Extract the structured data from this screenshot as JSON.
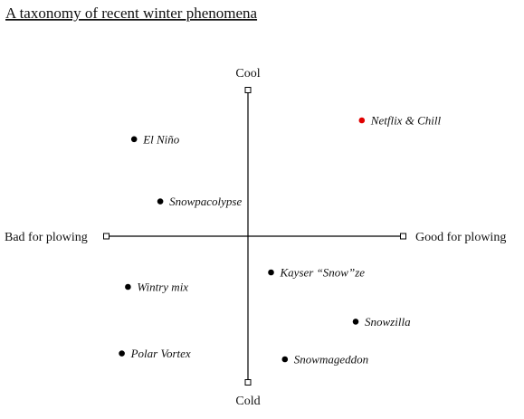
{
  "title": "A taxonomy of recent winter phenomena",
  "axes": {
    "top": "Cool",
    "bottom": "Cold",
    "left": "Bad for plowing",
    "right": "Good for plowing"
  },
  "colors": {
    "default_point": "#000000",
    "highlight_point": "#e00000",
    "axis": "#000000"
  },
  "points": [
    {
      "label": "Netflix & Chill",
      "x": 0.74,
      "y": 0.8,
      "highlight": true
    },
    {
      "label": "El Niño",
      "x": -0.74,
      "y": 0.67,
      "highlight": false
    },
    {
      "label": "Snowpacolypse",
      "x": -0.57,
      "y": 0.24,
      "highlight": false
    },
    {
      "label": "Kayser “Snow”ze",
      "x": 0.15,
      "y": -0.25,
      "highlight": false
    },
    {
      "label": "Wintry mix",
      "x": -0.78,
      "y": -0.35,
      "highlight": false
    },
    {
      "label": "Snowzilla",
      "x": 0.7,
      "y": -0.59,
      "highlight": false
    },
    {
      "label": "Polar Vortex",
      "x": -0.82,
      "y": -0.81,
      "highlight": false
    },
    {
      "label": "Snowmageddon",
      "x": 0.24,
      "y": -0.85,
      "highlight": false
    }
  ]
}
